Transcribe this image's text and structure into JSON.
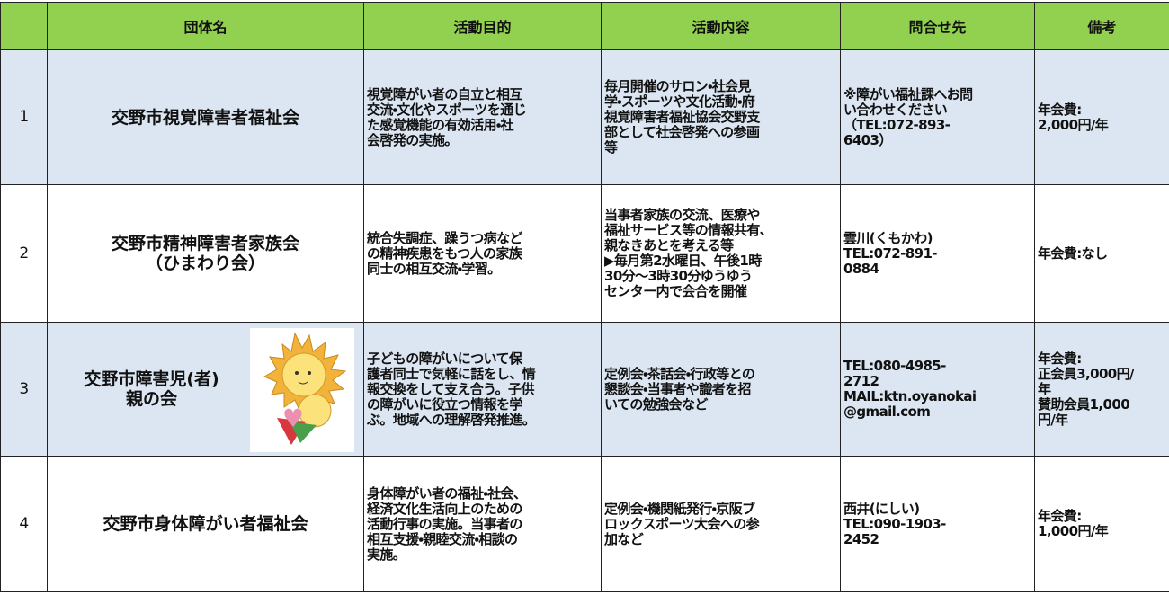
{
  "table": {
    "headers": [
      "団体名",
      "活動目的",
      "活動内容",
      "問合せ先",
      "備考"
    ],
    "rows": [
      {
        "number": "1",
        "name": [
          "交野市視覚障害者福祉会"
        ],
        "purpose": [
          "視覚障がい者の自立と相互",
          "交流・文化やスポーツを通じ",
          "た感覚機能の有効活用・社",
          "会啓発の実施。"
        ],
        "activity": [
          "毎月開催のサロン・社会見",
          "学・スポーツや文化活動・府",
          "視覚障害者福祉協会交野支",
          "部として社会啓発への参画",
          "等"
        ],
        "contact": [
          "※障がい福祉課へお問",
          "い合わせください",
          "（TEL:072-893-",
          "6403）"
        ],
        "note": [
          "年会費:",
          "2,000円/年"
        ]
      },
      {
        "number": "2",
        "name": [
          "交野市精神障害者家族会",
          "（ひまわり会）"
        ],
        "purpose": [
          "統合失調症、躁うつ病など",
          "の精神疾患をもつ人の家族",
          "同士の相互交流・学習。"
        ],
        "activity": [
          "当事者家族の交流、医療や",
          "福祉サービス等の情報共有、",
          "親なきあとを考える等",
          "▶毎月第2水曜日、午後1時",
          "30分～3時30分ゆうゆう",
          "センター内で会合を開催"
        ],
        "contact": [
          "雲川(くもかわ)",
          "TEL:072-891-",
          "0884"
        ],
        "note": [
          "年会費:なし"
        ]
      },
      {
        "number": "3",
        "name": [
          "交野市障害児(者)",
          "親の会"
        ],
        "purpose": [
          "子どもの障がいについて保",
          "護者同士で気軽に話をし、情",
          "報交換をして支え合う。子供",
          "の障がいに役立つ情報を学",
          "ぶ。地域への理解啓発推進。"
        ],
        "activity": [
          "定例会・茶話会・行政等との",
          "懇談会・当事者や識者を招",
          "いての勉強会など"
        ],
        "contact": [
          "TEL:080-4985-",
          "2712",
          "MAIL:ktn.oyanokai",
          "@gmail.com"
        ],
        "note": [
          "年会費:",
          "正会員3,000円/",
          "年",
          "賛助会員1,000",
          "円/年"
        ]
      },
      {
        "number": "4",
        "name": [
          "交野市身体障がい者福祉会"
        ],
        "purpose": [
          "身体障がい者の福祉・社会、",
          "経済文化生活向上のための",
          "活動行事の実施。当事者の",
          "相互支援・親睦交流・相談の",
          "実施。"
        ],
        "activity": [
          "定例会・機関紙発行・京阪ブ",
          "ロックスポーツ大会への参",
          "加など"
        ],
        "contact": [
          "西井(にしい)",
          "TEL:090-1903-",
          "2452"
        ],
        "note": [
          "年会費:",
          "1,000円/年"
        ]
      }
    ]
  }
}
